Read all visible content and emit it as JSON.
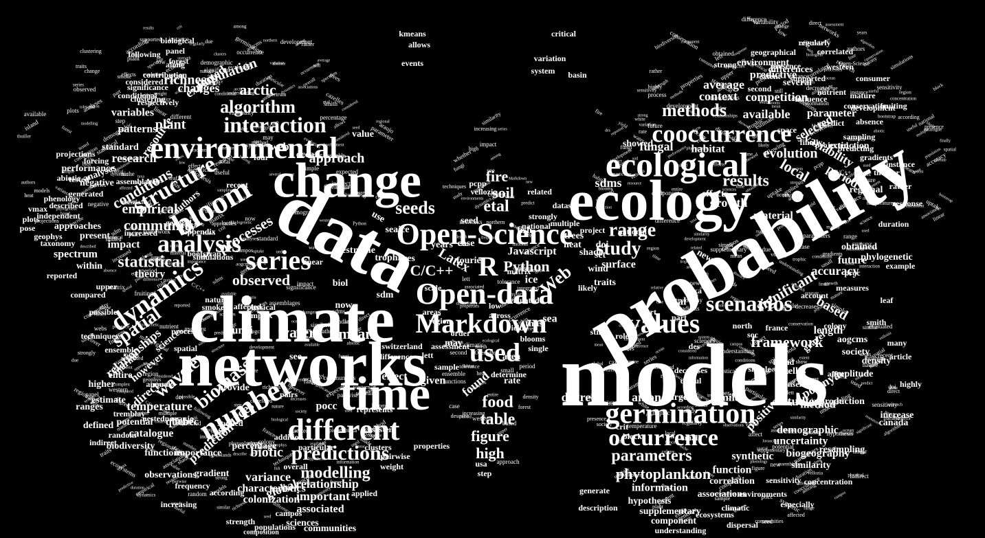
{
  "words": [
    "models",
    "probability",
    "data",
    "networks",
    "climate",
    "change",
    "ecology",
    "time",
    "Open-Science",
    "Open-data",
    "Markdown",
    "environmental",
    "ecological",
    "cooccurrence",
    "R",
    "different",
    "germination",
    "number",
    "bloom",
    "analysis",
    "series",
    "structure",
    "interaction",
    "dynamics",
    "occurrence",
    "scenarios",
    "values",
    "used",
    "algorithm",
    "methods",
    "predictions",
    "parameters",
    "phytoplankton",
    "modelling",
    "study",
    "range",
    "results",
    "biomass",
    "spatial",
    "wavelet",
    "food",
    "table",
    "figure",
    "high",
    "mean",
    "water",
    "seeds",
    "etal",
    "fire",
    "soil",
    "Web",
    "Python",
    "Latex",
    "C/C++",
    "Javascript",
    "statistical",
    "community",
    "empirical",
    "conditions",
    "approach",
    "plant",
    "arctic",
    "richness",
    "population",
    "changes",
    "expected",
    "resource",
    "variables",
    "patterns",
    "research",
    "performance",
    "analyses",
    "negative",
    "generated",
    "described",
    "approaches",
    "present",
    "impact",
    "spectrum",
    "within",
    "theory",
    "observed",
    "processes",
    "authors",
    "relationships",
    "however",
    "direct",
    "temperature",
    "quebec",
    "catalogue",
    "potential",
    "biodiversity",
    "prediction",
    "resources",
    "biotic",
    "variance",
    "global",
    "characteristics",
    "colonization",
    "associated",
    "important",
    "relationship",
    "information",
    "hypothesis",
    "supplementary",
    "correlation",
    "function",
    "synthetic",
    "similarity",
    "biogeography",
    "uncertainty",
    "demographic",
    "method",
    "positive",
    "studies",
    "polynya",
    "framework",
    "based",
    "accuracy",
    "significant",
    "future",
    "obtained",
    "evolution",
    "local",
    "period",
    "variability",
    "extinction",
    "selected",
    "parameter",
    "competition",
    "predictive",
    "environment",
    "differences",
    "geographical",
    "context",
    "average",
    "available",
    "fungal",
    "habitat",
    "showed",
    "sdms",
    "growth",
    "effects",
    "material",
    "degree",
    "among",
    "large",
    "similar",
    "cazelles",
    "canada",
    "increase",
    "production",
    "amplitude",
    "density",
    "aogcms",
    "society",
    "length",
    "gravel",
    "north",
    "total",
    "taxa",
    "surface",
    "ice",
    "sea",
    "doi",
    "set",
    "new",
    "pocc",
    "effect",
    "given",
    "found",
    "may",
    "thus",
    "across",
    "low",
    "rate",
    "area",
    "matrix",
    "sdm",
    "biol",
    "res",
    "now",
    "use",
    "seed",
    "see",
    "fungi",
    "process",
    "science",
    "spatial",
    "ensemble",
    "marine",
    "higher",
    "estimate",
    "tremblay",
    "random",
    "nestedness",
    "functions",
    "observations",
    "importance",
    "gradient",
    "percentage",
    "provide",
    "value",
    "webs",
    "ocean",
    "four",
    "recent",
    "linear",
    "test",
    "niche",
    "trophic",
    "seaice",
    "years",
    "case",
    "fourier",
    "fish",
    "trees",
    "heat",
    "shade",
    "wind",
    "traits",
    "entire",
    "ranges",
    "defined",
    "indirect",
    "increasing",
    "according",
    "frequency",
    "populations",
    "campos",
    "sciences",
    "communities",
    "strength",
    "composition",
    "component",
    "ecosystems",
    "understanding",
    "associations",
    "environments",
    "sensitivity",
    "concentration",
    "resampling",
    "phylogenetic",
    "example",
    "duration",
    "response",
    "regional",
    "instance",
    "thuiller",
    "gradients",
    "predicting",
    "projected",
    "finally",
    "space",
    "second",
    "several",
    "presence",
    "influence",
    "conservation",
    "development",
    "predict",
    "sampling",
    "absence",
    "applied",
    "pairwise",
    "properties",
    "ecosystem",
    "represents",
    "pairs",
    "forest",
    "panel",
    "along",
    "biological",
    "contribution",
    "following",
    "considered",
    "significance",
    "clustering",
    "respectively",
    "conditional",
    "standard",
    "projections",
    "forcing",
    "tested",
    "abiotic",
    "assemblages",
    "phenology",
    "independent",
    "geophys",
    "taxonomy",
    "increased",
    "general",
    "appendix",
    "bootstrap",
    "simulations",
    "affected",
    "physical",
    "complex",
    "smoke",
    "nature",
    "studied",
    "araujo",
    "kmeans",
    "allows",
    "events",
    "critical",
    "variation",
    "system",
    "basin",
    "related",
    "strongly",
    "national",
    "multiple",
    "dataset",
    "project",
    "national",
    "vellozia",
    "pcpp",
    "usa",
    "step",
    "lett",
    "areas",
    "scale",
    "region",
    "order",
    "yield",
    "blooms",
    "single",
    "likely",
    "still",
    "role",
    "start",
    "part",
    "des",
    "soc",
    "france",
    "account",
    "colony",
    "many",
    "article",
    "highly",
    "affect",
    "island",
    "simple",
    "climatic",
    "especially",
    "dispersal",
    "description",
    "generate",
    "annual",
    "possible",
    "techniques",
    "compared",
    "upper",
    "vmax",
    "plots",
    "pose",
    "reported",
    "particular",
    "addition",
    "weight",
    "clusters",
    "overall",
    "block",
    "crit",
    "small",
    "useful",
    "measures",
    "proc",
    "leaf",
    "strong",
    "mature",
    "extent",
    "rather",
    "fruiting",
    "consumer",
    "western",
    "correlated",
    "regularly",
    "nutrient",
    "supported",
    "evaluated",
    "determine",
    "difference",
    "switzerland",
    "sample",
    "assessment",
    "decreases",
    "consensus",
    "smith",
    "tolerance",
    "uptake",
    "shift",
    "whether",
    "second",
    "grasslands",
    "absence",
    "spiderobiota",
    "northern",
    "current",
    "describe",
    "cambridge",
    "relative",
    "integrated",
    "cover",
    "sets",
    "rates",
    "white",
    "due",
    "show",
    "settings",
    "observe",
    "range",
    "zones"
  ],
  "wing_colors": {
    "background": "#000000",
    "text": "#ffffff"
  }
}
